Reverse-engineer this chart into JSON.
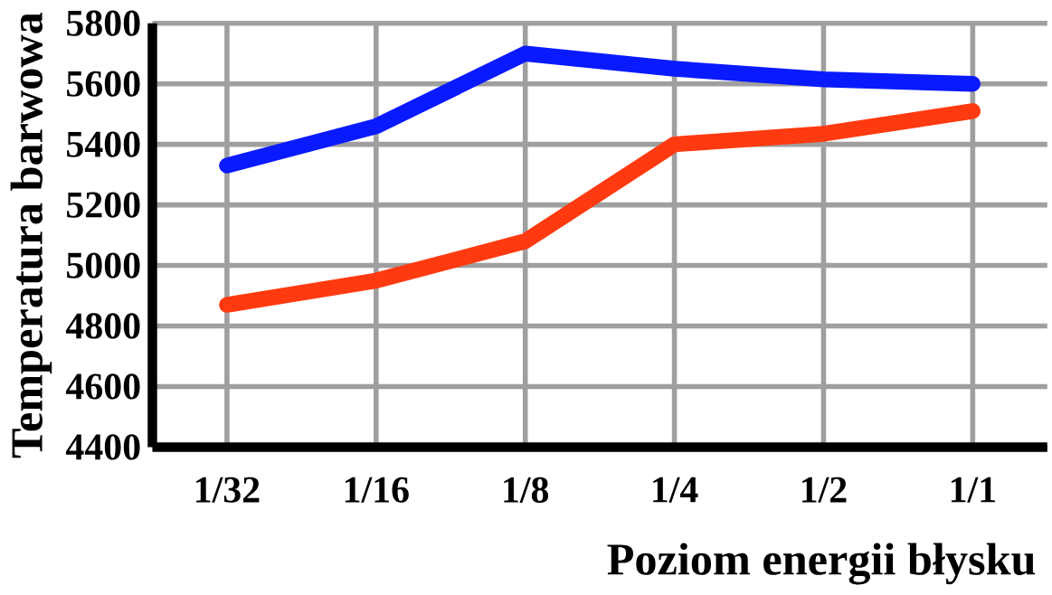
{
  "chart_data": {
    "type": "line",
    "xlabel": "Poziom energii błysku",
    "ylabel": "Temperatura barwowa",
    "categories": [
      "1/32",
      "1/16",
      "1/8",
      "1/4",
      "1/2",
      "1/1"
    ],
    "series": [
      {
        "color": "#0a1aff",
        "values": [
          5330,
          5460,
          5700,
          5650,
          5615,
          5600
        ]
      },
      {
        "color": "#ff3a10",
        "values": [
          4870,
          4950,
          5080,
          5400,
          5435,
          5510
        ]
      }
    ],
    "ylim": [
      4400,
      5800
    ],
    "yticks": [
      4400,
      4600,
      4800,
      5000,
      5200,
      5400,
      5600,
      5800
    ],
    "grid": true,
    "marker": "none",
    "line_style": "solid"
  }
}
